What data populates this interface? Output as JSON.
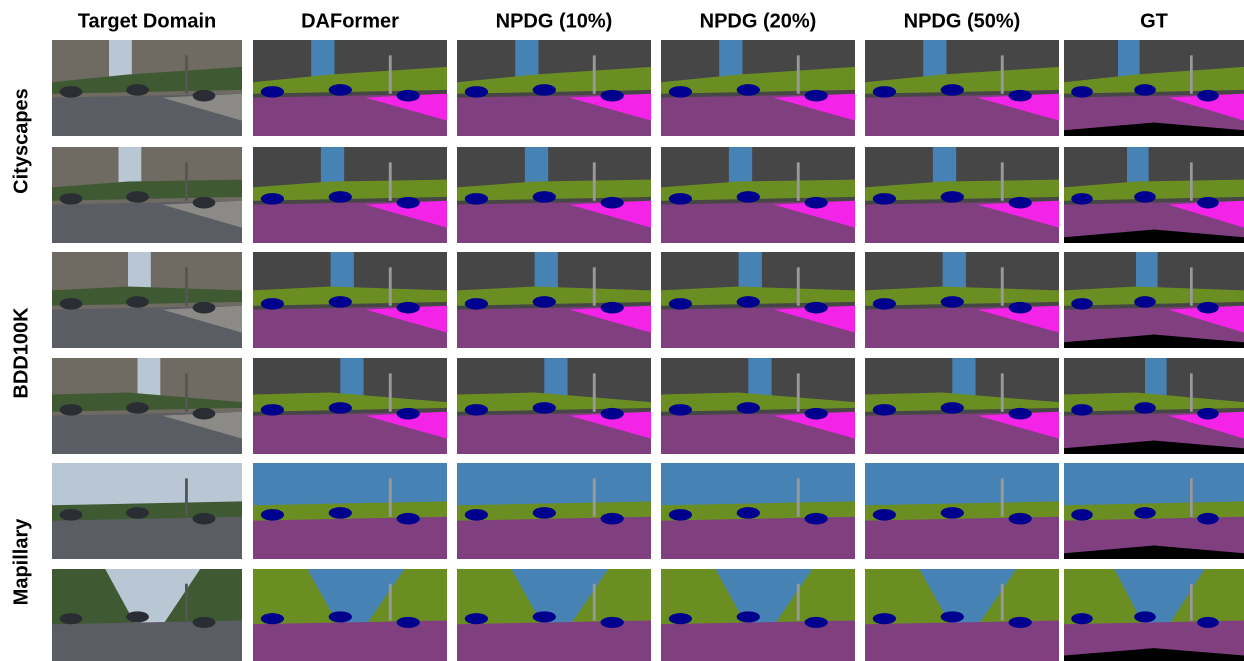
{
  "columns": [
    "Target Domain",
    "DAFormer",
    "NPDG (10%)",
    "NPDG (20%)",
    "NPDG (50%)",
    "GT"
  ],
  "row_groups": [
    "Cityscapes",
    "BDD100K",
    "Mapillary"
  ]
}
